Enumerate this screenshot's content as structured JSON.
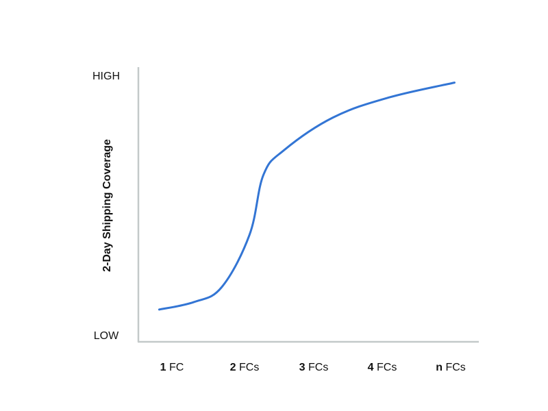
{
  "chart_data": {
    "type": "line",
    "title": "",
    "xlabel": "",
    "ylabel": "2-Day Shipping Coverage",
    "x_ticks": [
      {
        "num": "1",
        "unit": "FC"
      },
      {
        "num": "2",
        "unit": "FCs"
      },
      {
        "num": "3",
        "unit": "FCs"
      },
      {
        "num": "4",
        "unit": "FCs"
      },
      {
        "num": "n",
        "unit": "FCs"
      }
    ],
    "y_ticks": {
      "low": "LOW",
      "high": "HIGH"
    },
    "xlim": [
      0.7,
      5.6
    ],
    "ylim": [
      0,
      1
    ],
    "grid": false,
    "legend": "none",
    "series": [
      {
        "color": "#3375d4",
        "points": [
          [
            1.0,
            0.08
          ],
          [
            1.5,
            0.11
          ],
          [
            1.9,
            0.17
          ],
          [
            2.3,
            0.38
          ],
          [
            2.5,
            0.62
          ],
          [
            2.8,
            0.72
          ],
          [
            3.5,
            0.85
          ],
          [
            4.3,
            0.93
          ],
          [
            5.25,
            0.99
          ]
        ]
      }
    ],
    "axis_color": "#c3c9c9"
  }
}
